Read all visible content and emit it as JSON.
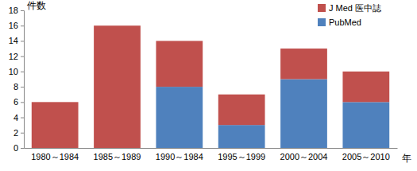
{
  "chart_data": {
    "type": "bar",
    "stacked": true,
    "grid": false,
    "legend": "top-right",
    "y_label": "件数",
    "x_label": "年",
    "categories": [
      "1980～1984",
      "1985～1989",
      "1990～1984",
      "1995～1999",
      "2000～2004",
      "2005～2010"
    ],
    "series": [
      {
        "name": "PubMed",
        "color": "#4f81bd",
        "values": [
          0,
          0,
          8,
          3,
          9,
          6
        ]
      },
      {
        "name": "J Med 医中誌",
        "color": "#c0504d",
        "values": [
          6,
          16,
          6,
          4,
          4,
          4
        ]
      }
    ],
    "ylim": [
      0,
      18
    ],
    "yticks": [
      0,
      2,
      4,
      6,
      8,
      10,
      12,
      14,
      16,
      18
    ]
  }
}
